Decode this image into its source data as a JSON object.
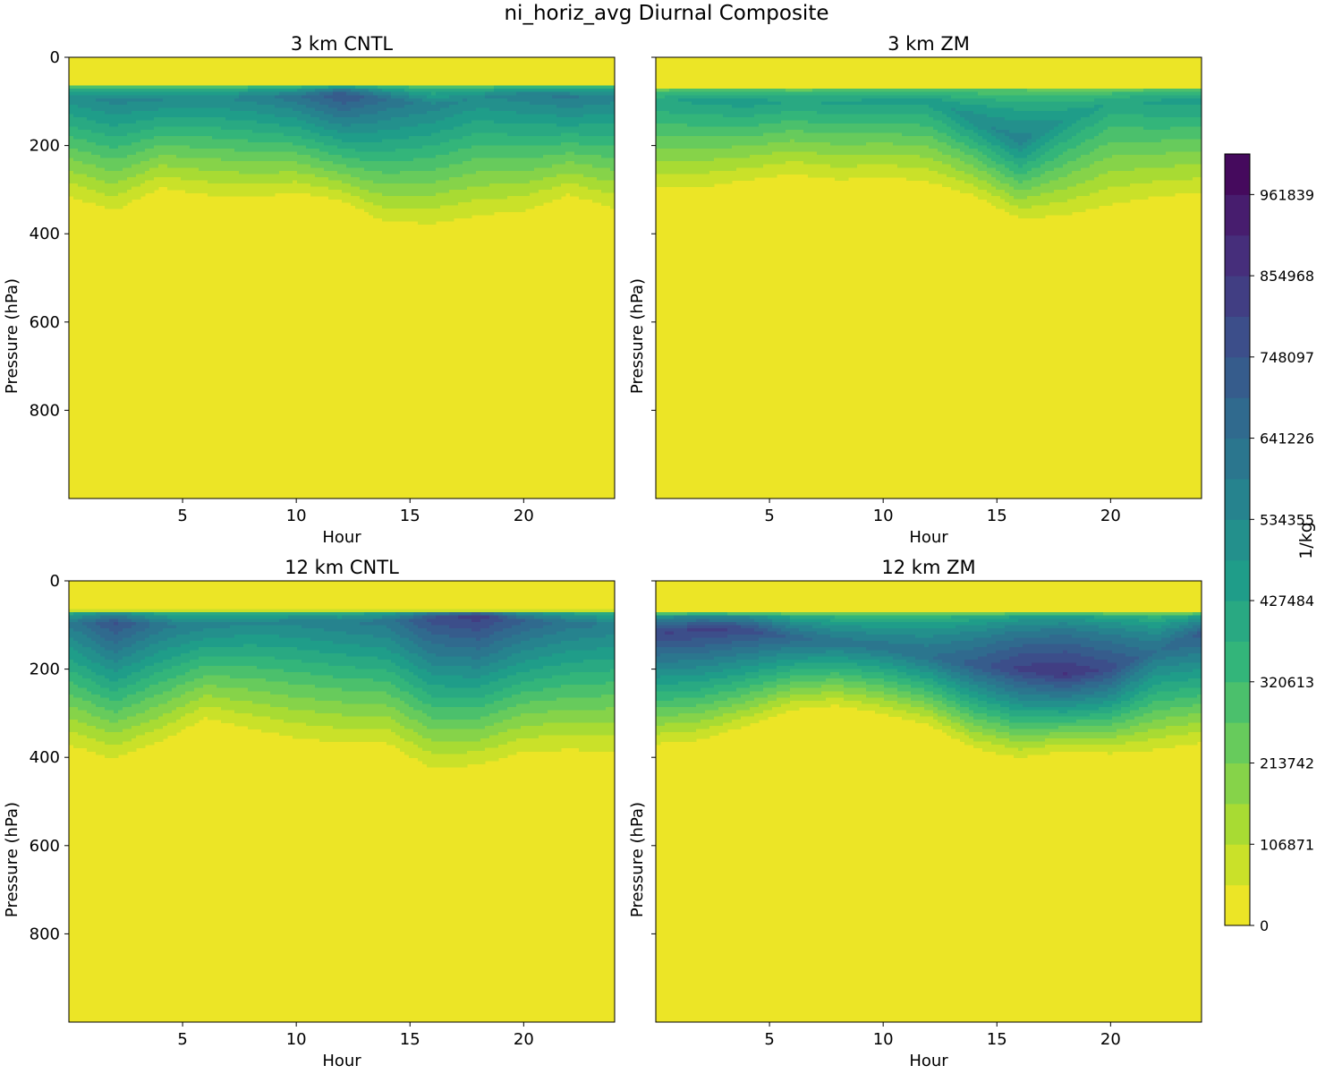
{
  "figure": {
    "title": "ni_horiz_avg Diurnal Composite"
  },
  "colorbar": {
    "label": "1/kg",
    "vmin": 0,
    "vmax": 1015274,
    "levels": 19,
    "ticks": [
      0,
      106871,
      213742,
      320613,
      427484,
      534355,
      641226,
      748097,
      854968,
      961839
    ],
    "tick_labels": [
      "0",
      "106871",
      "213742",
      "320613",
      "427484",
      "534355",
      "641226",
      "748097",
      "854968",
      "961839"
    ]
  },
  "chart_data": [
    {
      "type": "heatmap",
      "title": "3 km CNTL",
      "xlabel": "Hour",
      "ylabel": "Pressure (hPa)",
      "xlim": [
        0,
        24
      ],
      "ylim": [
        0,
        1000
      ],
      "yinverted": true,
      "xticks": [
        5,
        10,
        15,
        20
      ],
      "yticks": [
        0,
        200,
        400,
        600,
        800
      ],
      "hours": [
        0,
        2,
        4,
        6,
        8,
        10,
        12,
        14,
        16,
        18,
        20,
        22,
        24
      ],
      "cloud_top_hPa": [
        64,
        64,
        64,
        64,
        64,
        64,
        64,
        64,
        64,
        64,
        64,
        64,
        64
      ],
      "cloud_base_hPa": [
        350,
        385,
        325,
        345,
        350,
        335,
        350,
        410,
        415,
        400,
        385,
        340,
        380
      ],
      "peak_level_hPa": [
        90,
        95,
        95,
        95,
        90,
        90,
        85,
        95,
        110,
        90,
        85,
        90,
        90
      ],
      "peak_value": [
        520000,
        560000,
        540000,
        520000,
        560000,
        620000,
        760000,
        640000,
        560000,
        530000,
        570000,
        600000,
        560000
      ]
    },
    {
      "type": "heatmap",
      "title": "3 km ZM",
      "xlabel": "Hour",
      "ylabel": "Pressure (hPa)",
      "xlim": [
        0,
        24
      ],
      "ylim": [
        0,
        1000
      ],
      "yinverted": true,
      "xticks": [
        5,
        10,
        15,
        20
      ],
      "yticks": [
        0,
        200,
        400,
        600,
        800
      ],
      "hours": [
        0,
        2,
        4,
        6,
        8,
        10,
        12,
        14,
        16,
        18,
        20,
        22,
        24
      ],
      "cloud_top_hPa": [
        70,
        70,
        70,
        70,
        70,
        70,
        70,
        70,
        70,
        70,
        70,
        70,
        70
      ],
      "cloud_base_hPa": [
        335,
        330,
        310,
        295,
        310,
        300,
        315,
        340,
        390,
        395,
        380,
        355,
        345
      ],
      "peak_level_hPa": [
        100,
        95,
        100,
        100,
        100,
        100,
        95,
        140,
        190,
        140,
        100,
        100,
        95
      ],
      "peak_value": [
        420000,
        450000,
        460000,
        430000,
        440000,
        450000,
        460000,
        520000,
        560000,
        480000,
        420000,
        440000,
        450000
      ]
    },
    {
      "type": "heatmap",
      "title": "12 km CNTL",
      "xlabel": "Hour",
      "ylabel": "Pressure (hPa)",
      "xlim": [
        0,
        24
      ],
      "ylim": [
        0,
        1000
      ],
      "yinverted": true,
      "xticks": [
        5,
        10,
        15,
        20
      ],
      "yticks": [
        0,
        200,
        400,
        600,
        800
      ],
      "hours": [
        0,
        2,
        4,
        6,
        8,
        10,
        12,
        14,
        16,
        18,
        20,
        22,
        24
      ],
      "cloud_top_hPa": [
        67,
        67,
        67,
        67,
        67,
        67,
        67,
        67,
        67,
        67,
        67,
        67,
        67
      ],
      "cloud_base_hPa": [
        410,
        435,
        400,
        340,
        370,
        395,
        405,
        405,
        460,
        450,
        420,
        420,
        425
      ],
      "peak_level_hPa": [
        95,
        95,
        100,
        100,
        95,
        90,
        95,
        90,
        85,
        80,
        90,
        95,
        100
      ],
      "peak_value": [
        600000,
        760000,
        620000,
        560000,
        540000,
        560000,
        580000,
        620000,
        780000,
        830000,
        700000,
        620000,
        580000
      ]
    },
    {
      "type": "heatmap",
      "title": "12 km ZM",
      "xlabel": "Hour",
      "ylabel": "Pressure (hPa)",
      "xlim": [
        0,
        24
      ],
      "ylim": [
        0,
        1000
      ],
      "yinverted": true,
      "xticks": [
        5,
        10,
        15,
        20
      ],
      "yticks": [
        0,
        200,
        400,
        600,
        800
      ],
      "hours": [
        0,
        2,
        4,
        6,
        8,
        10,
        12,
        14,
        16,
        18,
        20,
        22,
        24
      ],
      "cloud_top_hPa": [
        72,
        72,
        72,
        72,
        72,
        72,
        72,
        72,
        72,
        72,
        72,
        72,
        72
      ],
      "cloud_base_hPa": [
        395,
        385,
        350,
        310,
        300,
        320,
        345,
        400,
        420,
        400,
        410,
        410,
        395
      ],
      "peak_level_hPa": [
        120,
        110,
        110,
        130,
        140,
        150,
        170,
        190,
        200,
        210,
        200,
        160,
        120
      ],
      "peak_value": [
        800000,
        820000,
        790000,
        680000,
        620000,
        620000,
        640000,
        720000,
        820000,
        860000,
        780000,
        640000,
        720000
      ]
    }
  ]
}
